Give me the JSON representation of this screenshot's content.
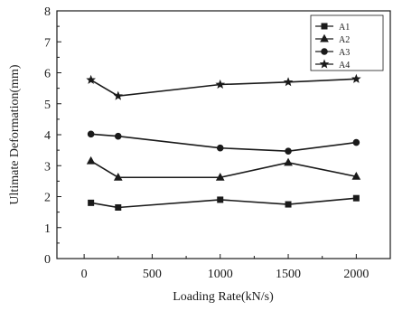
{
  "chart_data": {
    "type": "line",
    "title": "",
    "xlabel": "Loading Rate(kN/s)",
    "ylabel": "Ultimate Deformation(mm)",
    "xlim": [
      -200,
      2250
    ],
    "ylim": [
      0,
      8
    ],
    "xticks": [
      0,
      500,
      1000,
      1500,
      2000
    ],
    "yticks": [
      0,
      1,
      2,
      3,
      4,
      5,
      6,
      7,
      8
    ],
    "x": [
      50,
      250,
      1000,
      1500,
      2000
    ],
    "grid": false,
    "legend_position": "top-right",
    "series": [
      {
        "name": "A1",
        "marker": "square",
        "values": [
          1.8,
          1.65,
          1.9,
          1.75,
          1.95
        ]
      },
      {
        "name": "A2",
        "marker": "triangle",
        "values": [
          3.15,
          2.62,
          2.62,
          3.1,
          2.65
        ]
      },
      {
        "name": "A3",
        "marker": "circle",
        "values": [
          4.02,
          3.95,
          3.57,
          3.47,
          3.75
        ]
      },
      {
        "name": "A4",
        "marker": "star",
        "values": [
          5.77,
          5.25,
          5.62,
          5.7,
          5.8
        ]
      }
    ],
    "colors": {
      "line": "#1a1a1a",
      "axis": "#1a1a1a",
      "background": "#ffffff"
    }
  }
}
